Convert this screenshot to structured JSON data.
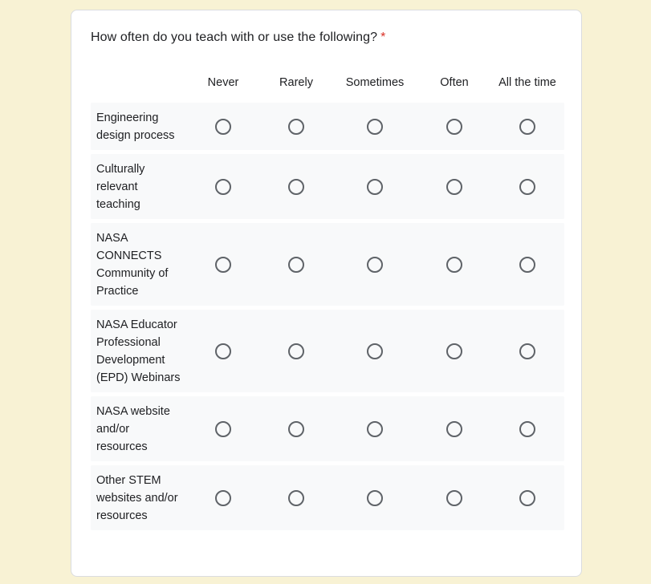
{
  "question": {
    "title": "How often do you teach with or use the following?",
    "required_mark": "*"
  },
  "columns": [
    "Never",
    "Rarely",
    "Sometimes",
    "Often",
    "All the time"
  ],
  "rows": [
    "Engineering design process",
    "Culturally relevant teaching",
    "NASA CONNECTS Community of Practice",
    "NASA Educator Professional Development (EPD) Webinars",
    "NASA website and/or resources",
    "Other STEM websites and/or resources"
  ],
  "colors": {
    "background": "#f8f2d4",
    "required": "#d93025",
    "row_bg": "#f8f9fa",
    "radio": "#5f6368"
  }
}
